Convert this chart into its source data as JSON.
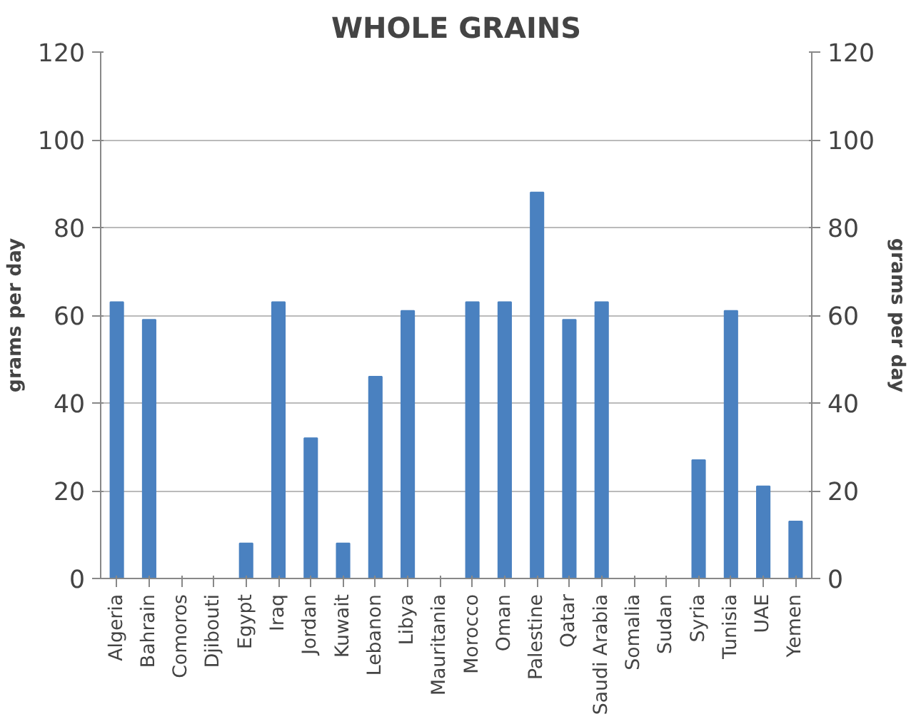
{
  "chart_data": {
    "type": "bar",
    "title": "WHOLE GRAINS",
    "ylabel": "grams per day",
    "y2label": "grams per day",
    "categories": [
      "Algeria",
      "Bahrain",
      "Comoros",
      "Djibouti",
      "Egypt",
      "Iraq",
      "Jordan",
      "Kuwait",
      "Lebanon",
      "Libya",
      "Mauritania",
      "Morocco",
      "Oman",
      "Palestine",
      "Qatar",
      "Saudi Arabia",
      "Somalia",
      "Sudan",
      "Syria",
      "Tunisia",
      "UAE",
      "Yemen"
    ],
    "values": [
      63,
      59,
      null,
      null,
      8,
      63,
      32,
      8,
      46,
      61,
      null,
      63,
      63,
      88,
      59,
      63,
      null,
      null,
      27,
      61,
      21,
      13
    ],
    "color": "#4a81c0",
    "ylim": [
      0,
      120
    ],
    "yticks": [
      0,
      20,
      40,
      60,
      80,
      100,
      120
    ],
    "y2lim": [
      0,
      120
    ],
    "y2ticks": [
      0,
      20,
      40,
      60,
      80,
      100,
      120
    ],
    "grid": "y"
  }
}
